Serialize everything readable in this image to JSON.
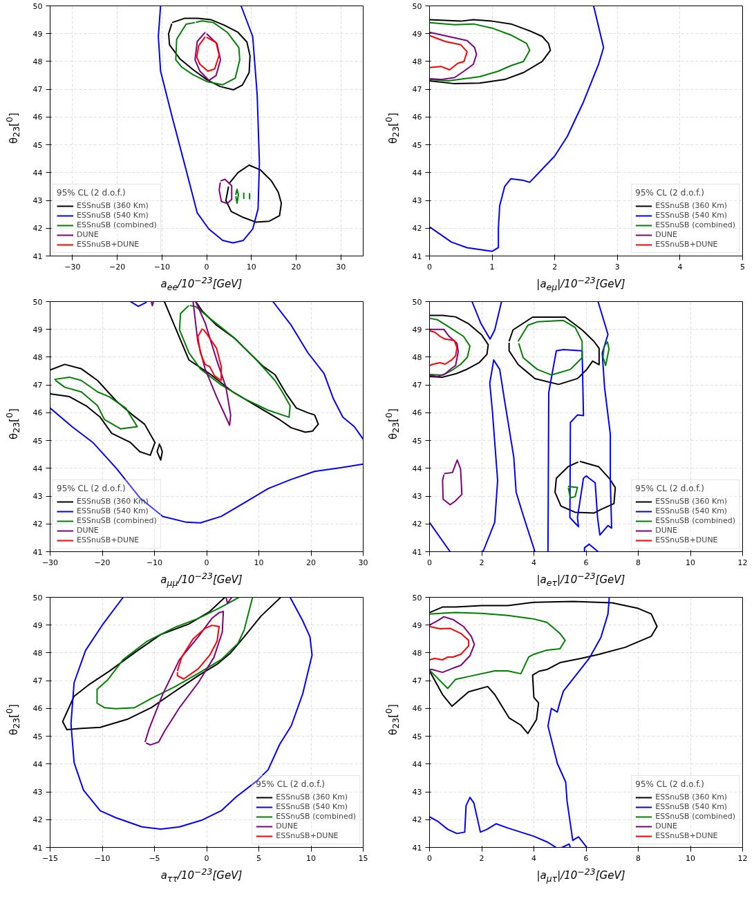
{
  "chart_data": [
    {
      "type": "line",
      "xlabel": "a$_{ee}$/10$^{−23}$[GeV]",
      "ylabel": "θ$_{23}$[$^{0}$]",
      "legend_title": "95% CL (2 d.o.f.)",
      "legend": "bottom left",
      "grid": true,
      "xlim": [
        -35,
        35
      ],
      "ylim": [
        41,
        50
      ],
      "xticks": [
        {
          "value": -30,
          "label": "−30"
        },
        {
          "value": -20,
          "label": "−20"
        },
        {
          "value": -10,
          "label": "−10"
        },
        0,
        10,
        20,
        30
      ],
      "yticks": [
        41,
        42,
        43,
        44,
        45,
        46,
        47,
        48,
        49,
        50
      ],
      "series": [
        {
          "name": "ESSnuSB (360 Km)",
          "color": "#000000",
          "x": [
            -7.7,
            -5,
            -2,
            1,
            4,
            7,
            9,
            9.7,
            9.5,
            8,
            6,
            3,
            0,
            -3,
            -6,
            -8.3,
            -8.5,
            -7.8
          ],
          "values": [
            49.4,
            49.55,
            49.55,
            49.5,
            49.3,
            49.05,
            48.7,
            48.2,
            47.6,
            47.15,
            46.98,
            47.1,
            47.35,
            47.7,
            48.1,
            48.6,
            49.0,
            49.36
          ]
        },
        {
          "color": "#000000",
          "x": [
            5,
            7,
            9.5,
            12,
            14.5,
            16,
            16.7,
            16.3,
            14,
            11,
            8,
            5.5,
            4.3,
            4.9
          ],
          "values": [
            43.6,
            44.0,
            44.27,
            44.1,
            43.7,
            43.3,
            42.9,
            42.45,
            42.25,
            42.22,
            42.4,
            42.6,
            43.0,
            43.5
          ]
        },
        {
          "name": "ESSnuSB (540 Km)",
          "color": "#0000ff",
          "x": [
            -10.3,
            -10.8,
            -10.3,
            -7.7,
            -4.6,
            -2.1,
            0.5,
            3.6,
            5.9,
            8.2,
            10.3,
            11.5,
            11.8,
            11.3,
            10.3,
            7.7
          ],
          "values": [
            50,
            48.9,
            47.65,
            46.0,
            44.1,
            42.55,
            41.97,
            41.56,
            41.47,
            41.56,
            41.97,
            42.7,
            44.36,
            46.8,
            48.9,
            50
          ]
        },
        {
          "name": "ESSnuSB (combined)",
          "color": "#008000",
          "x": [
            -2.6,
            -4.6,
            -6.7,
            -6.9,
            -5.6,
            -3.1,
            0,
            3.6,
            6.4,
            7.4,
            7.2,
            4.6,
            1.5,
            -1,
            -2.4
          ],
          "values": [
            49.4,
            49.34,
            48.8,
            48.06,
            47.8,
            47.53,
            47.28,
            47.16,
            47.4,
            48.06,
            48.5,
            49.05,
            49.4,
            49.46,
            49.41
          ]
        },
        {
          "color": "#008000",
          "x": [
            6.5,
            6.8,
            7.1,
            6.8,
            6.52
          ],
          "values": [
            43.2,
            43.4,
            43.2,
            42.9,
            43.15
          ]
        },
        {
          "color": "#008000",
          "x": [
            8.3,
            8.3
          ],
          "values": [
            43.05,
            43.28
          ]
        },
        {
          "color": "#008000",
          "x": [
            9.6,
            9.6
          ],
          "values": [
            43.04,
            43.26
          ]
        },
        {
          "name": "DUNE",
          "color": "#800080",
          "x": [
            -0.3,
            -2.1,
            -2.6,
            -1.5,
            0.5,
            2.1,
            3.1,
            2.3,
            0.0
          ],
          "values": [
            49.05,
            48.72,
            48.06,
            47.65,
            47.32,
            47.49,
            48.06,
            48.64,
            49.0
          ]
        },
        {
          "color": "#800080",
          "x": [
            3.1,
            4.1,
            5.6,
            5.6,
            4.6,
            3.3,
            2.8,
            3.05
          ],
          "values": [
            43.7,
            43.76,
            43.53,
            43.04,
            42.89,
            42.96,
            43.37,
            43.65
          ]
        },
        {
          "name": "ESSnuSB+DUNE",
          "color": "#ff0000",
          "x": [
            -0.3,
            -1.8,
            -2.2,
            -1.5,
            0.3,
            1.8,
            2.8,
            2.1,
            0.0
          ],
          "values": [
            48.89,
            48.56,
            48.15,
            47.9,
            47.65,
            47.73,
            48.23,
            48.68,
            48.87
          ]
        }
      ]
    },
    {
      "type": "line",
      "xlabel": "|a$_{eμ}$|/10$^{−23}$[GeV]",
      "ylabel": "θ$_{23}$[$^{0}$]",
      "legend_title": "95% CL (2 d.o.f.)",
      "legend": "bottom right",
      "grid": true,
      "xlim": [
        0,
        5
      ],
      "ylim": [
        41,
        50
      ],
      "xticks": [
        0,
        1,
        2,
        3,
        4,
        5
      ],
      "yticks": [
        41,
        42,
        43,
        44,
        45,
        46,
        47,
        48,
        49,
        50
      ],
      "series": [
        {
          "name": "ESSnuSB (360 Km)",
          "color": "#000000",
          "x": [
            0,
            0.5,
            0.7,
            1,
            1.3,
            1.6,
            1.8,
            1.9,
            1.93,
            1.8,
            1.5,
            1.2,
            0.8,
            0.4,
            0
          ],
          "values": [
            49.5,
            49.45,
            49.5,
            49.45,
            49.35,
            49.1,
            48.9,
            48.65,
            48.4,
            48.0,
            47.6,
            47.35,
            47.22,
            47.2,
            47.3
          ]
        },
        {
          "name": "ESSnuSB (540 Km)",
          "color": "#0000ff",
          "x": [
            2.62,
            2.78,
            2.7,
            2.45,
            2.2,
            2.0,
            1.6,
            1.5,
            1.3,
            1.2,
            1.12,
            1.1,
            1.1,
            1.0,
            0.6,
            0.35,
            0
          ],
          "values": [
            50,
            48.5,
            47.9,
            46.5,
            45.3,
            44.6,
            43.65,
            43.72,
            43.78,
            43.5,
            42.8,
            42.0,
            41.3,
            41.17,
            41.3,
            41.5,
            42.05
          ]
        },
        {
          "name": "ESSnuSB (combined)",
          "color": "#008000",
          "x": [
            0,
            0.4,
            0.7,
            1,
            1.3,
            1.55,
            1.6,
            1.5,
            1.3,
            1.1,
            0.8,
            0.3,
            0
          ],
          "values": [
            49.4,
            49.32,
            49.35,
            49.2,
            48.95,
            48.65,
            48.4,
            48.0,
            47.85,
            47.65,
            47.45,
            47.3,
            47.35
          ]
        },
        {
          "name": "DUNE",
          "color": "#800080",
          "x": [
            0,
            0.3,
            0.6,
            0.72,
            0.75,
            0.7,
            0.55,
            0.4,
            0.2,
            0
          ],
          "values": [
            49.05,
            48.9,
            48.75,
            48.5,
            48.25,
            47.9,
            47.65,
            47.42,
            47.35,
            47.38
          ]
        },
        {
          "name": "ESSnuSB+DUNE",
          "color": "#ff0000",
          "x": [
            0,
            0.25,
            0.5,
            0.6,
            0.55,
            0.45,
            0.32,
            0.18,
            0
          ],
          "values": [
            48.93,
            48.72,
            48.6,
            48.35,
            48.0,
            47.93,
            47.7,
            47.82,
            47.78
          ]
        }
      ]
    },
    {
      "type": "line",
      "xlabel": "a$_{μμ}$/10$^{−23}$[GeV]",
      "ylabel": "θ$_{23}$[$^{0}$]",
      "legend_title": "95% CL (2 d.o.f.)",
      "legend": "bottom left",
      "grid": true,
      "xlim": [
        -30,
        30
      ],
      "ylim": [
        41,
        50
      ],
      "xticks": [
        {
          "value": -30,
          "label": "−30"
        },
        {
          "value": -20,
          "label": "−20"
        },
        {
          "value": -10,
          "label": "−10"
        },
        0,
        10,
        20,
        30
      ],
      "yticks": [
        41,
        42,
        43,
        44,
        45,
        46,
        47,
        48,
        49,
        50
      ],
      "series": [
        {
          "name": "ESSnuSB (360 Km)",
          "color": "#000000",
          "x": [
            -8.1,
            -3.4,
            0.6,
            5,
            9.5,
            14,
            16.2,
            18.9,
            20.3,
            21.4,
            20.7,
            19.4,
            17.2,
            15.3,
            13.1,
            10.9,
            8.6,
            5.5,
            1.9,
            -0.8,
            -2.1
          ],
          "values": [
            50,
            47.9,
            47.4,
            46.75,
            46.25,
            45.75,
            45.46,
            45.3,
            45.34,
            45.59,
            45.92,
            46.0,
            46.17,
            46.67,
            47.37,
            47.66,
            48.08,
            48.66,
            49.15,
            49.65,
            50
          ]
        },
        {
          "color": "#000000",
          "x": [
            -30,
            -27.2,
            -24,
            -20.9,
            -17.3,
            -14.2,
            -11.9,
            -9.9,
            -10.8,
            -12.8,
            -14.6,
            -18.2,
            -20.4,
            -23.1,
            -26.3,
            -30
          ],
          "values": [
            47.54,
            47.74,
            47.58,
            47.16,
            46.42,
            45.92,
            45.59,
            44.93,
            44.47,
            44.6,
            44.93,
            45.26,
            45.84,
            46.25,
            46.58,
            46.68
          ]
        },
        {
          "color": "#000000",
          "x": [
            -9,
            -9.5,
            -8.8,
            -8.5,
            -8.9
          ],
          "values": [
            44.89,
            44.6,
            44.3,
            44.6,
            44.83
          ]
        },
        {
          "name": "ESSnuSB (540 Km)",
          "color": "#0000ff",
          "x": [
            -30,
            -25.8,
            -21.8,
            -17.3,
            -12.8,
            -8.4,
            -3.9,
            -1.2,
            2.8,
            7.3,
            11.8,
            16.2,
            20.7,
            25.2,
            30
          ],
          "values": [
            46.17,
            45.5,
            44.93,
            44.0,
            42.94,
            42.27,
            42.06,
            42.04,
            42.27,
            42.77,
            43.27,
            43.6,
            43.89,
            44.01,
            44.15
          ]
        },
        {
          "color": "#0000ff",
          "x": [
            12.7,
            16.2,
            19.4,
            22.5,
            24.3,
            26.1,
            28.3,
            30
          ],
          "values": [
            50,
            49.15,
            48.16,
            47.41,
            46.5,
            45.84,
            45.5,
            45.05
          ]
        },
        {
          "color": "#0000ff",
          "x": [
            -14.6,
            -13.1,
            -11.5
          ],
          "values": [
            50,
            49.83,
            49.98
          ]
        },
        {
          "name": "ESSnuSB (combined)",
          "color": "#008000",
          "x": [
            -29.2,
            -26.3,
            -24,
            -20.9,
            -18.7,
            -15.5,
            -13.3,
            -16.5,
            -19.6,
            -20.9,
            -24,
            -27.2,
            -29.0
          ],
          "values": [
            47.2,
            47.28,
            47.16,
            46.75,
            46.58,
            46.17,
            45.5,
            45.42,
            45.76,
            46.25,
            46.75,
            46.92,
            47.17
          ]
        },
        {
          "color": "#008000",
          "x": [
            -3.4,
            -5,
            -5.2,
            -3.4,
            -1.2,
            2.8,
            7.3,
            11.8,
            15.8,
            16,
            14.5,
            13.1,
            9.5,
            5,
            0.6,
            -2.1,
            -3.2
          ],
          "values": [
            49.86,
            49.57,
            48.99,
            48.16,
            47.58,
            47.0,
            46.5,
            46.09,
            45.84,
            46.25,
            46.75,
            47.16,
            47.91,
            48.74,
            49.4,
            49.82,
            49.86
          ]
        },
        {
          "name": "DUNE",
          "color": "#800080",
          "x": [
            -2.6,
            -1.7,
            -0.3,
            1.9,
            4.4,
            4.6,
            3.7,
            1.9,
            -0.3,
            -2.1
          ],
          "values": [
            50,
            48.57,
            47.58,
            46.58,
            45.55,
            45.92,
            46.92,
            47.91,
            49.24,
            50
          ]
        },
        {
          "color": "#800080",
          "x": [
            -10.6,
            -10.4,
            -10.2
          ],
          "values": [
            50,
            49.85,
            50
          ]
        },
        {
          "name": "ESSnuSB+DUNE",
          "color": "#ff0000",
          "x": [
            -0.8,
            -1.7,
            -1.2,
            -0.3,
            0.6,
            1.5,
            2.8,
            2.8,
            1.9,
            0.1,
            -0.65
          ],
          "values": [
            49.03,
            48.74,
            48.16,
            47.74,
            47.66,
            47.33,
            47.16,
            47.66,
            48.32,
            48.82,
            49.0
          ]
        }
      ]
    },
    {
      "type": "line",
      "xlabel": "|a$_{eτ}$|/10$^{−23}$[GeV]",
      "ylabel": "θ$_{23}$[$^{0}$]",
      "legend_title": "95% CL (2 d.o.f.)",
      "legend": "bottom right",
      "grid": true,
      "xlim": [
        0,
        12
      ],
      "ylim": [
        41,
        50
      ],
      "xticks": [
        0,
        2,
        4,
        6,
        8,
        10,
        12
      ],
      "yticks": [
        41,
        42,
        43,
        44,
        45,
        46,
        47,
        48,
        49,
        50
      ],
      "series": [
        {
          "name": "ESSnuSB (360 Km)",
          "color": "#000000",
          "x": [
            0,
            0.5,
            1,
            1.5,
            2.0,
            2.25,
            2.2,
            1.9,
            1.4,
            1,
            0.5,
            0
          ],
          "values": [
            49.5,
            49.5,
            49.45,
            49.2,
            48.8,
            48.45,
            48.1,
            47.8,
            47.55,
            47.4,
            47.28,
            47.3
          ]
        },
        {
          "color": "#000000",
          "x": [
            3.05,
            3.2,
            3.95,
            5.2,
            5.85,
            6.3,
            6.5,
            6.5,
            6.25,
            6.03,
            5.67,
            4.95,
            4.04,
            3.4,
            3.05,
            3.05
          ],
          "values": [
            48.57,
            48.98,
            49.44,
            49.44,
            48.98,
            48.57,
            48.32,
            47.73,
            47.86,
            47.56,
            47.23,
            47.02,
            47.23,
            47.73,
            48.23,
            48.52
          ]
        },
        {
          "color": "#000000",
          "x": [
            5.76,
            6.48,
            6.89,
            7.12,
            7.07,
            6.57,
            6.3,
            5.58,
            5.04,
            4.81,
            4.86,
            5.31,
            5.7
          ],
          "values": [
            44.25,
            44.06,
            43.64,
            43.31,
            42.73,
            42.52,
            42.39,
            42.42,
            42.64,
            43.14,
            43.64,
            44.06,
            44.23
          ]
        },
        {
          "name": "ESSnuSB (540 Km)",
          "color": "#0000ff",
          "x": [
            1.63,
            1.96,
            2.32,
            2.5,
            2.76
          ],
          "values": [
            50,
            49.23,
            48.65,
            48.98,
            50
          ]
        },
        {
          "color": "#0000ff",
          "x": [
            2.05,
            2.5,
            2.61,
            2.41,
            2.31,
            2.46,
            2.69,
            2.87,
            3.23,
            3.32,
            3.59,
            4.04
          ],
          "values": [
            41,
            42.06,
            43.56,
            46.06,
            47.06,
            47.9,
            47.56,
            46.48,
            44.4,
            43.14,
            42.31,
            41
          ]
        },
        {
          "color": "#0000ff",
          "x": [
            0,
            0.79
          ],
          "values": [
            42.05,
            41
          ]
        },
        {
          "color": "#0000ff",
          "x": [
            4.54,
            4.57,
            4.86,
            5.13,
            5.85,
            5.9,
            5.67,
            5.4,
            5.38,
            5.71,
            5.67,
            5.9,
            6.01,
            6.12,
            6.35,
            6.44,
            6.53,
            6.84,
            6.98,
            6.93,
            6.93,
            6.71,
            6.62,
            6.84,
            6.46
          ],
          "values": [
            41,
            46.73,
            48.23,
            48.27,
            48.23,
            45.9,
            45.92,
            45.65,
            42.23,
            41.9,
            42.23,
            43.64,
            43.73,
            43.64,
            43.48,
            42.23,
            41.6,
            41.94,
            41.85,
            43.56,
            45.23,
            46.9,
            48.15,
            48.82,
            50
          ]
        },
        {
          "color": "#0000ff",
          "x": [
            5.94,
            5.94,
            6.12,
            6.46
          ],
          "values": [
            41,
            41.14,
            41.27,
            41
          ]
        },
        {
          "name": "ESSnuSB (combined)",
          "color": "#008000",
          "x": [
            0,
            0.3,
            0.8,
            1.3,
            1.55,
            1.45,
            1.2,
            0.9,
            0.5,
            0
          ],
          "values": [
            49.4,
            49.35,
            49.05,
            48.75,
            48.4,
            48.0,
            47.75,
            47.55,
            47.35,
            47.38
          ]
        },
        {
          "color": "#008000",
          "x": [
            3.4,
            3.77,
            4.13,
            5.13,
            5.58,
            5.85,
            5.85,
            5.4,
            4.67,
            4.13,
            3.59,
            3.42
          ],
          "values": [
            48.57,
            49.15,
            49.27,
            49.32,
            49.07,
            48.57,
            47.98,
            47.56,
            47.36,
            47.56,
            47.98,
            48.5
          ]
        },
        {
          "color": "#008000",
          "x": [
            6.7,
            6.82,
            6.88,
            6.75,
            6.65,
            6.69
          ],
          "values": [
            48.4,
            48.55,
            48.3,
            47.7,
            48.0,
            48.35
          ]
        },
        {
          "color": "#008000",
          "x": [
            5.31,
            5.67,
            5.58,
            5.4,
            5.32
          ],
          "values": [
            43.35,
            43.31,
            42.98,
            42.94,
            43.3
          ]
        },
        {
          "name": "DUNE",
          "color": "#800080",
          "x": [
            0,
            0.35,
            0.55,
            0.75,
            1.05,
            1.1,
            1.0,
            0.85,
            0.6,
            0.3,
            0
          ],
          "values": [
            49.0,
            49.0,
            49.0,
            48.75,
            48.5,
            48.2,
            47.7,
            47.6,
            47.4,
            47.3,
            47.35
          ]
        },
        {
          "color": "#800080",
          "x": [
            0.56,
            0.88,
            1.06,
            1.19,
            1.24,
            0.97,
            0.79,
            0.52,
            0.5,
            0.55
          ],
          "values": [
            43.81,
            43.85,
            44.3,
            43.98,
            43.06,
            42.81,
            42.69,
            42.89,
            43.56,
            43.77
          ]
        },
        {
          "name": "ESSnuSB+DUNE",
          "color": "#ff0000",
          "x": [
            0,
            0.2,
            0.4,
            0.6,
            0.95,
            1.05,
            1.0,
            0.85,
            0.6,
            0.4,
            0.15,
            0
          ],
          "values": [
            48.95,
            48.9,
            48.75,
            48.65,
            48.6,
            48.35,
            48.05,
            47.9,
            47.75,
            47.8,
            47.75,
            47.7
          ]
        }
      ]
    },
    {
      "type": "line",
      "xlabel": "a$_{ττ}$/10$^{−23}$[GeV]",
      "ylabel": "θ$_{23}$[$^{0}$]",
      "legend_title": "95% CL (2 d.o.f.)",
      "legend": "bottom right",
      "grid": true,
      "xlim": [
        -15,
        15
      ],
      "ylim": [
        41,
        50
      ],
      "xticks": [
        {
          "value": -15,
          "label": "−15"
        },
        {
          "value": -10,
          "label": "−10"
        },
        {
          "value": -5,
          "label": "−5"
        },
        0,
        5,
        10,
        15
      ],
      "yticks": [
        41,
        42,
        43,
        44,
        45,
        46,
        47,
        48,
        49,
        50
      ],
      "series": [
        {
          "name": "ESSnuSB (360 Km)",
          "color": "#000000",
          "x": [
            1.74,
            0.3,
            -1.7,
            -4.4,
            -6.6,
            -9.3,
            -11.3,
            -12.7,
            -13.8,
            -13.4,
            -12,
            -10.2,
            -7.6,
            -5.3,
            -3.1,
            -0.8,
            1,
            2.3,
            3.6,
            5.2,
            7.1
          ],
          "values": [
            50,
            49.49,
            49.04,
            48.66,
            48.09,
            47.35,
            46.85,
            46.44,
            45.53,
            45.24,
            45.28,
            45.32,
            45.61,
            46.03,
            46.6,
            47.18,
            47.59,
            48.0,
            48.58,
            49.32,
            50
          ]
        },
        {
          "name": "ESSnuSB (540 Km)",
          "color": "#0000ff",
          "x": [
            -8,
            -10,
            -11.6,
            -12.7,
            -13,
            -12.7,
            -11.8,
            -10.2,
            -8.7,
            -6.2,
            -4.4,
            -2.6,
            -0.4,
            1.4,
            2.8,
            4.8,
            5.9,
            7.0,
            8.1,
            9.2,
            10.1,
            9.9,
            9.2,
            8
          ],
          "values": [
            50,
            49,
            48.09,
            46.93,
            45.45,
            44.05,
            43.06,
            42.32,
            42.07,
            41.74,
            41.66,
            41.74,
            41.99,
            42.32,
            42.81,
            43.39,
            43.8,
            44.71,
            45.37,
            46.52,
            47.92,
            48.58,
            49.16,
            50
          ]
        },
        {
          "name": "ESSnuSB (combined)",
          "color": "#008000",
          "x": [
            3.1,
            1.4,
            -0.8,
            -3.1,
            -5.7,
            -8,
            -9.5,
            -10.5,
            -10.5,
            -9.8,
            -8.7,
            -6.9,
            -5.3,
            -3.1,
            -0.8,
            1.4,
            3.0,
            3.6,
            4.4
          ],
          "values": [
            50,
            49.65,
            49.24,
            48.91,
            48.42,
            47.76,
            47.02,
            46.69,
            46.19,
            46.03,
            45.99,
            46.03,
            46.36,
            46.77,
            47.26,
            47.76,
            48.34,
            48.83,
            50
          ]
        },
        {
          "name": "DUNE",
          "color": "#800080",
          "x": [
            -5.9,
            -5.5,
            -4.2,
            -2.6,
            -0.8,
            0.5,
            1.2,
            1.6,
            1.5,
            0.7,
            -0.8,
            -2.6,
            -4,
            -4.6,
            -5.4,
            -5.8
          ],
          "values": [
            44.79,
            45.28,
            46.52,
            47.76,
            48.58,
            49.24,
            49.45,
            49.49,
            48.75,
            47.84,
            46.93,
            46.03,
            45.2,
            44.79,
            44.69,
            44.76
          ]
        },
        {
          "color": "#800080",
          "x": [
            1.86,
            2.0,
            2.4
          ],
          "values": [
            50,
            49.78,
            50
          ]
        },
        {
          "name": "ESSnuSB+DUNE",
          "color": "#ff0000",
          "x": [
            -2.8,
            -2.4,
            -1.3,
            -0.2,
            0.5,
            1.2,
            1,
            0.3,
            -0.8,
            -2.2,
            -2.8,
            -2.8
          ],
          "values": [
            47.35,
            47.84,
            48.5,
            48.87,
            48.99,
            48.95,
            48.42,
            47.92,
            47.43,
            47.06,
            47.18,
            47.3
          ]
        }
      ]
    },
    {
      "type": "line",
      "xlabel": "|a$_{μτ}$|/10$^{−23}$[GeV]",
      "ylabel": "θ$_{23}$[$^{0}$]",
      "legend_title": "95% CL (2 d.o.f.)",
      "legend": "bottom right",
      "grid": true,
      "xlim": [
        0,
        12
      ],
      "ylim": [
        41,
        50
      ],
      "xticks": [
        0,
        2,
        4,
        6,
        8,
        10,
        12
      ],
      "yticks": [
        41,
        42,
        43,
        44,
        45,
        46,
        47,
        48,
        49,
        50
      ],
      "series": [
        {
          "name": "ESSnuSB (360 Km)",
          "color": "#000000",
          "x": [
            0,
            0.5,
            1,
            2,
            3,
            4,
            5.5,
            7,
            8,
            8.5,
            8.72,
            8.5,
            7.5,
            6.5,
            5.8,
            5,
            4.5,
            4.2,
            3.95,
            4.0,
            4.18,
            4.1,
            3.77,
            3.5,
            3.05,
            2.5,
            2.23,
            1.5,
            0.86,
            0.5,
            0
          ],
          "values": [
            49.45,
            49.65,
            49.65,
            49.7,
            49.7,
            49.82,
            49.85,
            49.8,
            49.6,
            49.4,
            48.95,
            48.6,
            48.2,
            47.95,
            47.8,
            47.65,
            47.4,
            47.34,
            47.2,
            46.4,
            46.2,
            45.6,
            45.1,
            45.4,
            45.66,
            46.5,
            46.79,
            46.6,
            46.08,
            46.5,
            47.35
          ]
        },
        {
          "name": "ESSnuSB (540 Km)",
          "color": "#0000ff",
          "x": [
            6.89,
            6.84,
            6.57,
            6.12,
            5.13,
            4.99,
            4.9,
            4.67,
            4.54,
            4.9,
            5.22,
            5.27,
            5.49,
            5.71,
            6.03
          ],
          "values": [
            50,
            49.4,
            48.56,
            47.8,
            46.62,
            46.2,
            45.87,
            46.0,
            45.37,
            44.02,
            43.35,
            42.68,
            41.25,
            41.38,
            41
          ]
        },
        {
          "color": "#0000ff",
          "x": [
            0,
            0.3,
            0.7,
            1.05,
            1.35,
            1.4,
            1.55,
            1.7,
            1.95,
            2.2,
            2.55,
            3,
            3.5,
            4.0,
            4.5,
            4.85
          ],
          "values": [
            42.1,
            41.95,
            41.65,
            41.5,
            41.55,
            42.5,
            42.8,
            42.6,
            41.55,
            41.65,
            41.85,
            41.7,
            41.55,
            41.4,
            41.2,
            41
          ]
        },
        {
          "color": "#0000ff",
          "x": [
            5.08,
            5.35,
            5.4
          ],
          "values": [
            41,
            41.12,
            41
          ]
        },
        {
          "name": "ESSnuSB (combined)",
          "color": "#008000",
          "x": [
            0,
            0.5,
            1,
            2,
            3,
            4,
            4.5,
            5.0,
            5.2,
            5.0,
            4.5,
            4.0,
            3.8,
            3.5,
            3,
            2.5,
            1.5,
            1,
            0.7,
            0
          ],
          "values": [
            49.4,
            49.43,
            49.45,
            49.42,
            49.35,
            49.22,
            49.1,
            48.7,
            48.45,
            48.15,
            48.1,
            47.95,
            47.85,
            47.25,
            47.35,
            47.35,
            47.15,
            47.05,
            46.72,
            47.38
          ]
        },
        {
          "name": "DUNE",
          "color": "#800080",
          "x": [
            0,
            0.3,
            0.55,
            0.9,
            1.3,
            1.6,
            1.72,
            1.55,
            1.2,
            0.9,
            0.5,
            0.1,
            0
          ],
          "values": [
            49.0,
            49.15,
            49.3,
            49.2,
            48.95,
            48.6,
            48.3,
            47.9,
            47.55,
            47.45,
            47.3,
            47.4,
            47.4
          ]
        },
        {
          "name": "ESSnuSB+DUNE",
          "color": "#ff0000",
          "x": [
            0,
            0.4,
            0.8,
            1.2,
            1.5,
            1.5,
            1.2,
            0.9,
            0.7,
            0.5,
            0.2,
            0
          ],
          "values": [
            48.95,
            48.87,
            48.88,
            48.7,
            48.45,
            48.25,
            47.95,
            47.85,
            47.85,
            47.75,
            47.8,
            47.75
          ]
        }
      ]
    }
  ]
}
